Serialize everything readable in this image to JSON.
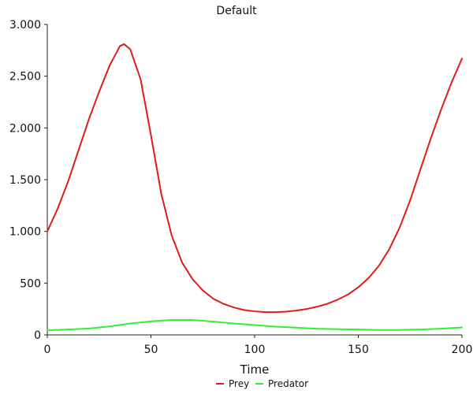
{
  "chart_data": {
    "type": "line",
    "title": "Default",
    "xlabel": "Time",
    "ylabel": "",
    "xlim": [
      0,
      200
    ],
    "ylim": [
      0,
      3000
    ],
    "x_ticks": [
      0,
      50,
      100,
      150,
      200
    ],
    "y_ticks": [
      0,
      500,
      1000,
      1500,
      2000,
      2500,
      3000
    ],
    "x_tick_labels": [
      "0",
      "50",
      "100",
      "150",
      "200"
    ],
    "y_tick_labels": [
      "0",
      "500",
      "1.000",
      "1.500",
      "2.000",
      "2.500",
      "3.000"
    ],
    "grid": false,
    "legend_position": "bottom-center",
    "series": [
      {
        "name": "Prey",
        "color": "#e31a1c",
        "points": [
          [
            0,
            1000
          ],
          [
            5,
            1220
          ],
          [
            10,
            1480
          ],
          [
            15,
            1780
          ],
          [
            20,
            2080
          ],
          [
            25,
            2350
          ],
          [
            30,
            2600
          ],
          [
            35,
            2790
          ],
          [
            37,
            2810
          ],
          [
            40,
            2760
          ],
          [
            45,
            2470
          ],
          [
            50,
            1930
          ],
          [
            55,
            1360
          ],
          [
            60,
            960
          ],
          [
            65,
            700
          ],
          [
            70,
            540
          ],
          [
            75,
            430
          ],
          [
            80,
            350
          ],
          [
            85,
            300
          ],
          [
            90,
            265
          ],
          [
            95,
            240
          ],
          [
            100,
            228
          ],
          [
            105,
            220
          ],
          [
            110,
            220
          ],
          [
            115,
            225
          ],
          [
            120,
            235
          ],
          [
            125,
            250
          ],
          [
            130,
            272
          ],
          [
            135,
            300
          ],
          [
            140,
            340
          ],
          [
            145,
            390
          ],
          [
            150,
            460
          ],
          [
            155,
            550
          ],
          [
            160,
            670
          ],
          [
            165,
            830
          ],
          [
            170,
            1040
          ],
          [
            175,
            1300
          ],
          [
            180,
            1600
          ],
          [
            185,
            1900
          ],
          [
            190,
            2180
          ],
          [
            195,
            2440
          ],
          [
            200,
            2670
          ]
        ]
      },
      {
        "name": "Predator",
        "color": "#33ee33",
        "points": [
          [
            0,
            45
          ],
          [
            10,
            52
          ],
          [
            20,
            62
          ],
          [
            30,
            82
          ],
          [
            40,
            110
          ],
          [
            50,
            130
          ],
          [
            60,
            145
          ],
          [
            70,
            145
          ],
          [
            80,
            128
          ],
          [
            90,
            110
          ],
          [
            100,
            95
          ],
          [
            110,
            80
          ],
          [
            120,
            70
          ],
          [
            130,
            60
          ],
          [
            140,
            55
          ],
          [
            150,
            52
          ],
          [
            160,
            48
          ],
          [
            170,
            48
          ],
          [
            180,
            52
          ],
          [
            190,
            60
          ],
          [
            200,
            72
          ]
        ]
      }
    ]
  }
}
